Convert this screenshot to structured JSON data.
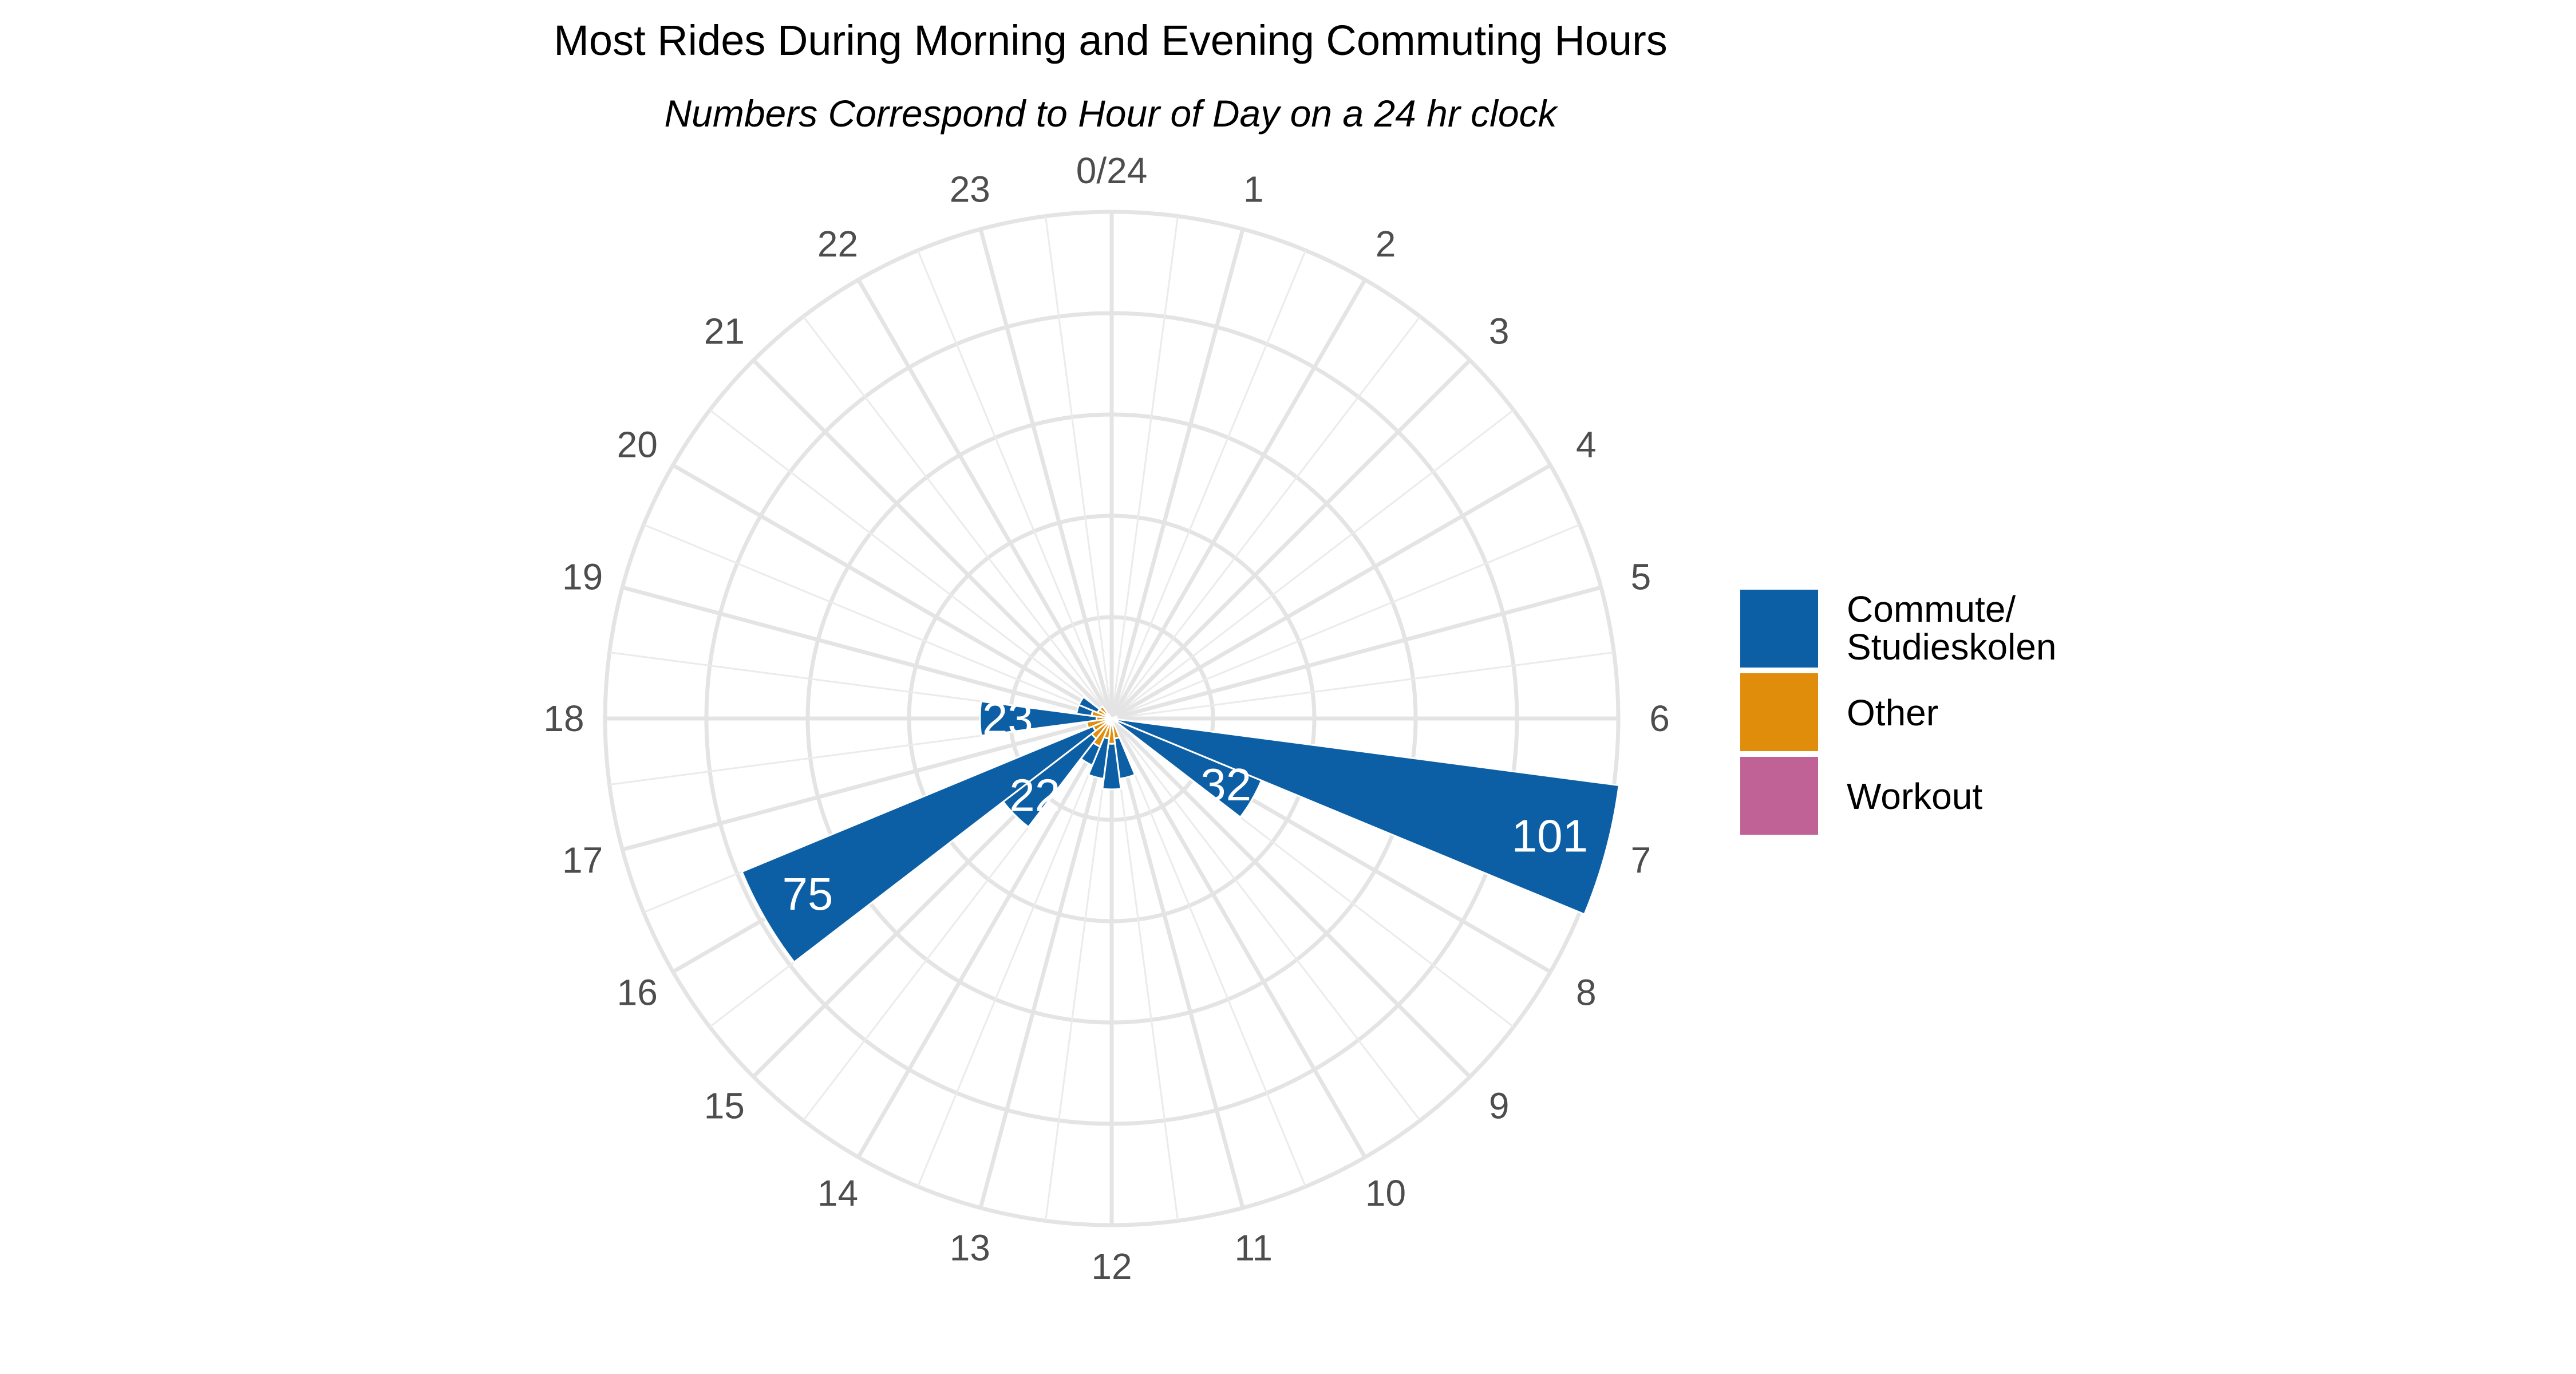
{
  "title": "Most Rides During Morning and Evening Commuting Hours",
  "subtitle": "Numbers Correspond to Hour of Day on a 24 hr clock",
  "legend": [
    {
      "label": "Commute/\nStudieskolen",
      "color": "#0C5FA5"
    },
    {
      "label": "Other",
      "color": "#E08D0B"
    },
    {
      "label": "Workout",
      "color": "#C06296"
    }
  ],
  "chart_data": {
    "type": "bar",
    "coord": "polar",
    "title": "Most Rides During Morning and Evening Commuting Hours",
    "subtitle": "Numbers Correspond to Hour of Day on a 24 hr clock",
    "hour_labels": [
      "0/24",
      "1",
      "2",
      "3",
      "4",
      "5",
      "6",
      "7",
      "8",
      "9",
      "10",
      "11",
      "12",
      "13",
      "14",
      "15",
      "16",
      "17",
      "18",
      "19",
      "20",
      "21",
      "22",
      "23"
    ],
    "categories": [
      0,
      1,
      2,
      3,
      4,
      5,
      6,
      7,
      8,
      9,
      10,
      11,
      12,
      13,
      14,
      15,
      16,
      17,
      18,
      19,
      20,
      21,
      22,
      23
    ],
    "series": [
      {
        "name": "Commute/\nStudieskolen",
        "color": "#0C5FA5",
        "values": [
          0,
          0,
          0,
          0,
          0,
          0,
          0,
          101,
          32,
          0,
          0,
          8,
          9,
          8,
          4,
          22,
          75,
          0,
          23,
          3,
          4,
          0,
          0,
          0
        ]
      },
      {
        "name": "Other",
        "color": "#E08D0B",
        "values": [
          0,
          0,
          0,
          0,
          0,
          0,
          0,
          0,
          0,
          0,
          0,
          4,
          5,
          4,
          6,
          5,
          4,
          5,
          3,
          4,
          3,
          3,
          0,
          0
        ]
      },
      {
        "name": "Workout",
        "color": "#C06296",
        "values": [
          0,
          0,
          0,
          0,
          0,
          1,
          1,
          0,
          0,
          0,
          0,
          0,
          0,
          0,
          0,
          0,
          0,
          0,
          0,
          0,
          0,
          0,
          0,
          0
        ]
      }
    ],
    "bar_labels": [
      {
        "hour": 7,
        "text": "101"
      },
      {
        "hour": 8,
        "text": "32"
      },
      {
        "hour": 15,
        "text": "22"
      },
      {
        "hour": 16,
        "text": "75"
      },
      {
        "hour": 18,
        "text": "23"
      }
    ],
    "stacking": "stacked",
    "ylim": [
      0,
      100
    ],
    "grid": true,
    "legend_position": "right"
  }
}
